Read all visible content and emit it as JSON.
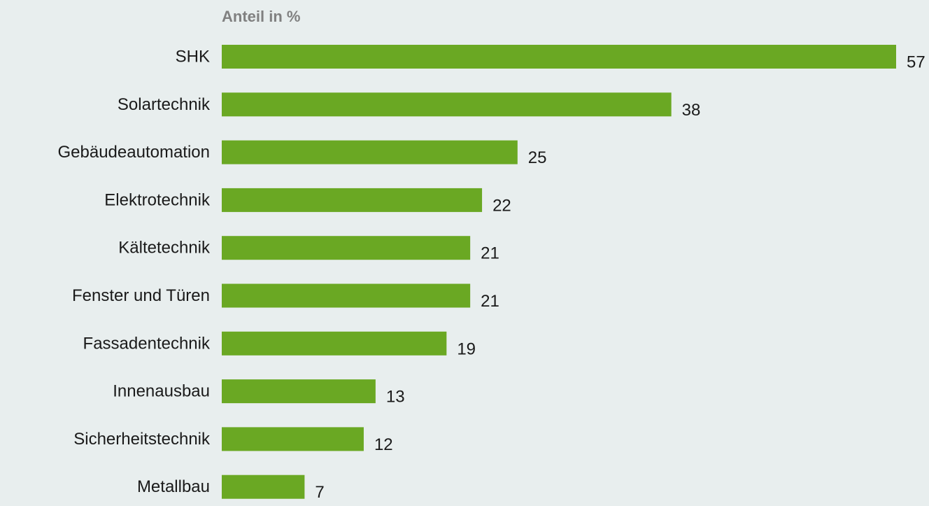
{
  "chart_data": {
    "type": "bar",
    "orientation": "horizontal",
    "title": "Anteil in %",
    "categories": [
      "SHK",
      "Solartechnik",
      "Gebäudeautomation",
      "Elektrotechnik",
      "Kältetechnik",
      "Fenster und Türen",
      "Fassadentechnik",
      "Innenausbau",
      "Sicherheitstechnik",
      "Metallbau"
    ],
    "values": [
      57,
      38,
      25,
      22,
      21,
      21,
      19,
      13,
      12,
      7
    ],
    "value_labels": [
      "57",
      "38",
      "25",
      "22",
      "21",
      "21",
      "19",
      "13",
      "12",
      "7"
    ],
    "xlim": [
      0,
      57
    ],
    "grid": false,
    "legend": "none",
    "colors": {
      "bar": "#6aa823",
      "background": "#e8eeee"
    }
  }
}
